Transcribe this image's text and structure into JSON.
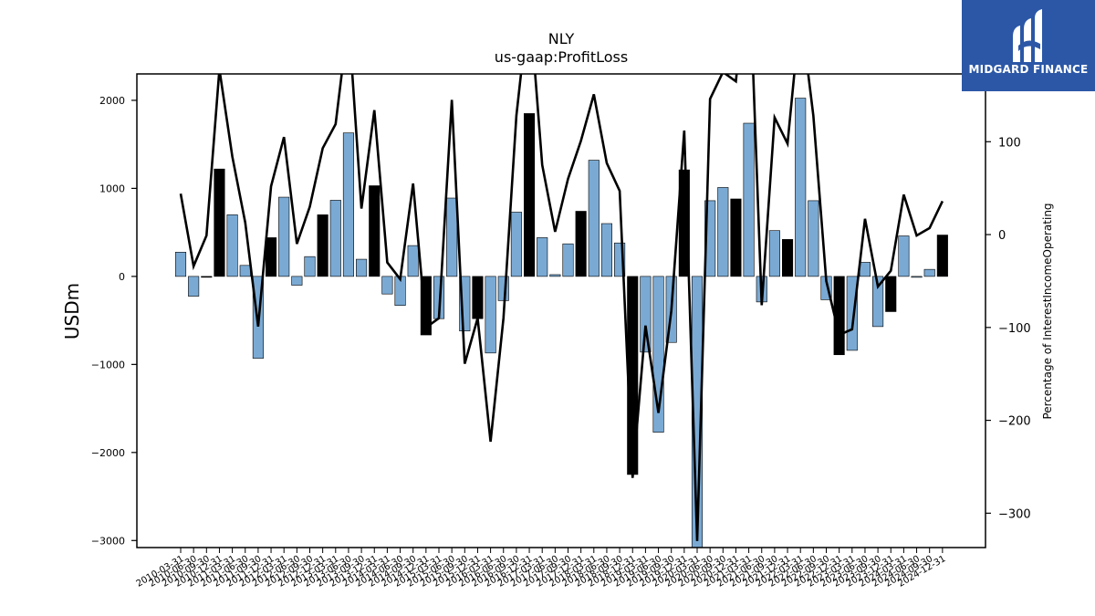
{
  "title": "NLY",
  "subtitle": "us-gaap:ProfitLoss",
  "logo": {
    "text": "MIDGARD FINANCE",
    "bg_color": "#2b57a6"
  },
  "colors": {
    "positive_bar": "#7aaad4",
    "highlight_bar": "#000000",
    "line": "#000000"
  },
  "chart_data": {
    "type": "bar",
    "title": "NLY",
    "subtitle": "us-gaap:ProfitLoss",
    "ylabel": "USDm",
    "y2label": "Percentage of InterestIncomeOperating",
    "ylim": [
      -3080,
      2300
    ],
    "y2lim": [
      -337,
      173
    ],
    "yticks": [
      -3000,
      -2000,
      -1000,
      0,
      1000,
      2000
    ],
    "y2ticks": [
      -300,
      -200,
      -100,
      0,
      100
    ],
    "categories": [
      "2010-03-31",
      "2010-06-30",
      "2010-09-30",
      "2010-12-31",
      "2011-03-31",
      "2011-06-30",
      "2011-09-30",
      "2011-12-31",
      "2012-03-31",
      "2012-06-30",
      "2012-09-30",
      "2012-12-31",
      "2013-03-31",
      "2013-06-30",
      "2013-09-30",
      "2013-12-31",
      "2014-03-31",
      "2014-06-30",
      "2014-09-30",
      "2014-12-31",
      "2015-03-31",
      "2015-06-30",
      "2015-09-30",
      "2015-12-31",
      "2016-03-31",
      "2016-06-30",
      "2016-09-30",
      "2016-12-31",
      "2017-03-31",
      "2017-06-30",
      "2017-09-30",
      "2017-12-31",
      "2018-03-31",
      "2018-06-30",
      "2018-09-30",
      "2018-12-31",
      "2019-03-31",
      "2019-06-30",
      "2019-09-30",
      "2019-12-31",
      "2020-03-31",
      "2020-06-30",
      "2020-09-30",
      "2020-12-31",
      "2021-03-31",
      "2021-06-30",
      "2021-09-30",
      "2021-12-31",
      "2022-03-31",
      "2022-06-30",
      "2022-09-30",
      "2022-12-31",
      "2023-03-31",
      "2023-06-30",
      "2023-09-30",
      "2023-12-31",
      "2024-03-31",
      "2024-06-30",
      "2024-09-30",
      "2024-12-31"
    ],
    "series": [
      {
        "type": "bar",
        "values": [
          275,
          -225,
          -10,
          1220,
          700,
          125,
          -930,
          440,
          900,
          -100,
          225,
          700,
          865,
          1630,
          195,
          1030,
          -200,
          -330,
          350,
          -665,
          -480,
          890,
          -620,
          -480,
          -870,
          -275,
          730,
          1850,
          440,
          20,
          370,
          740,
          1320,
          600,
          380,
          -2250,
          -860,
          -1770,
          -750,
          1210,
          -3090,
          860,
          1010,
          880,
          1740,
          -290,
          520,
          420,
          2025,
          860,
          -265,
          -890,
          -840,
          160,
          -570,
          -400,
          460,
          -10,
          80,
          470
        ],
        "highlight": [
          false,
          false,
          true,
          true,
          false,
          false,
          false,
          true,
          false,
          false,
          false,
          true,
          false,
          false,
          false,
          true,
          false,
          false,
          false,
          true,
          false,
          false,
          false,
          true,
          false,
          false,
          false,
          true,
          false,
          false,
          false,
          true,
          false,
          false,
          false,
          true,
          false,
          false,
          false,
          true,
          false,
          false,
          false,
          true,
          false,
          false,
          false,
          true,
          false,
          false,
          false,
          true,
          false,
          false,
          false,
          true,
          false,
          false,
          false,
          true
        ]
      },
      {
        "type": "line",
        "axis": "right",
        "values": [
          44,
          -34,
          -1,
          178,
          84,
          13,
          -99,
          52,
          105,
          -10,
          30,
          93,
          119,
          233,
          28,
          134,
          -30,
          -48,
          55,
          -100,
          -90,
          145,
          -139,
          -90,
          -223,
          -90,
          128,
          254,
          75,
          3,
          60,
          101,
          151,
          77,
          47,
          -262,
          -98,
          -192,
          -82,
          112,
          -330,
          146,
          175,
          165,
          303,
          -76,
          126,
          98,
          241,
          128,
          -50,
          -108,
          -102,
          17,
          -56,
          -39,
          43,
          -1,
          7,
          36
        ]
      }
    ]
  }
}
